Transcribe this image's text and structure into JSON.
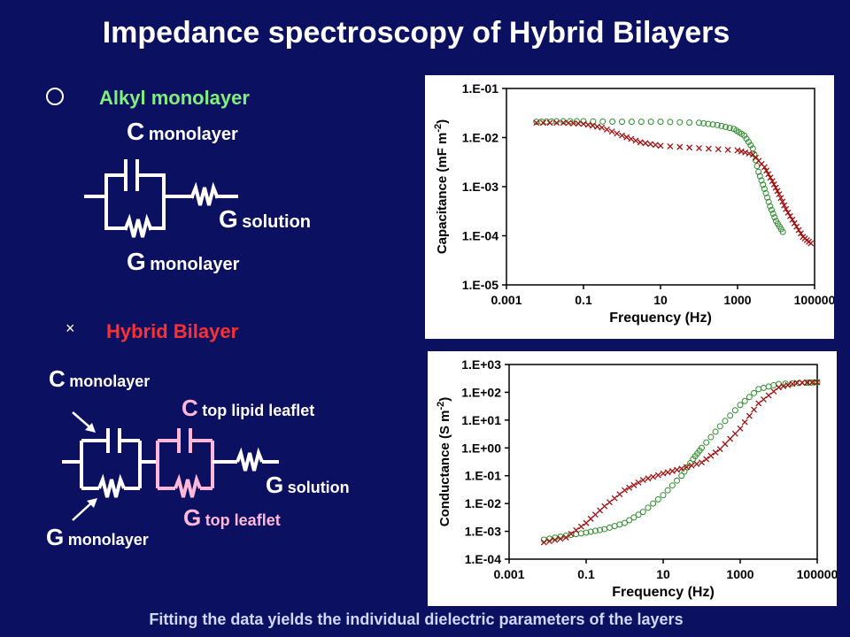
{
  "title": "Impedance spectroscopy of Hybrid Bilayers",
  "legend": {
    "alkyl_symbol": "circle",
    "alkyl_label": "Alkyl monolayer",
    "hybrid_symbol": "×",
    "hybrid_label": "Hybrid Bilayer"
  },
  "circuit1": {
    "c_letter": "C",
    "c_sub": "monolayer",
    "gs_letter": "G",
    "gs_sub": "solution",
    "gm_letter": "G",
    "gm_sub": "monolayer"
  },
  "circuit2": {
    "c_letter": "C",
    "c_sub": "monolayer",
    "ct_letter": "C",
    "ct_sub": "top lipid leaflet",
    "gs_letter": "G",
    "gs_sub": "solution",
    "gt_letter": "G",
    "gt_sub": "top leaflet",
    "gm_letter": "G",
    "gm_sub": "monolayer"
  },
  "footer": "Fitting the data yields the individual dielectric parameters of the layers",
  "colors": {
    "background": "#0c1060",
    "alkyl": "#2e8b2e",
    "hybrid": "#a01010",
    "alkyl_label": "#7ef07e",
    "hybrid_label": "#ff3030",
    "top_leaflet": "#ffb8d8"
  },
  "chart_data": [
    {
      "type": "scatter",
      "x_scale": "log",
      "y_scale": "log",
      "xlabel": "Frequency (Hz)",
      "ylabel_main": "Capacitance (mF m",
      "ylabel_sup": "-2",
      "ylabel_end": ")",
      "xlim": [
        0.001,
        100000
      ],
      "ylim": [
        1e-05,
        0.1
      ],
      "xticks": [
        "0.001",
        "0.1",
        "10",
        "1000",
        "100000"
      ],
      "yticks": [
        "1.E-05",
        "1.E-04",
        "1.E-03",
        "1.E-02",
        "1.E-01"
      ],
      "series": [
        {
          "marker": "circle",
          "color": "#2e8b2e",
          "points": [
            [
              0.006,
              0.021
            ],
            [
              0.02,
              0.0215
            ],
            [
              0.1,
              0.0215
            ],
            [
              1,
              0.021
            ],
            [
              10,
              0.021
            ],
            [
              100,
              0.02
            ],
            [
              300,
              0.018
            ],
            [
              800,
              0.015
            ],
            [
              1500,
              0.011
            ],
            [
              2500,
              0.006
            ],
            [
              3500,
              0.002
            ],
            [
              5000,
              0.0009
            ],
            [
              7000,
              0.0004
            ],
            [
              10000,
              0.0002
            ],
            [
              15000,
              0.00012
            ]
          ]
        },
        {
          "marker": "x",
          "color": "#a01010",
          "points": [
            [
              0.006,
              0.02
            ],
            [
              0.03,
              0.02
            ],
            [
              0.1,
              0.019
            ],
            [
              0.3,
              0.016
            ],
            [
              1,
              0.011
            ],
            [
              3,
              0.008
            ],
            [
              10,
              0.0068
            ],
            [
              100,
              0.0061
            ],
            [
              1000,
              0.0055
            ],
            [
              2500,
              0.0045
            ],
            [
              5000,
              0.0025
            ],
            [
              8000,
              0.0013
            ],
            [
              12000,
              0.0007
            ],
            [
              18000,
              0.00035
            ],
            [
              30000,
              0.00018
            ],
            [
              50000,
              9.5e-05
            ],
            [
              80000,
              7e-05
            ]
          ]
        }
      ]
    },
    {
      "type": "scatter",
      "x_scale": "log",
      "y_scale": "log",
      "xlabel": "Frequency (Hz)",
      "ylabel_main": "Conductance (S m",
      "ylabel_sup": "-2",
      "ylabel_end": ")",
      "xlim": [
        0.001,
        100000
      ],
      "ylim": [
        0.0001,
        1000
      ],
      "xticks": [
        "0.001",
        "0.1",
        "10",
        "1000",
        "100000"
      ],
      "yticks": [
        "1.E-04",
        "1.E-03",
        "1.E-02",
        "1.E-01",
        "1.E+00",
        "1.E+01",
        "1.E+02",
        "1.E+03"
      ],
      "series": [
        {
          "marker": "circle",
          "color": "#2e8b2e",
          "points": [
            [
              0.008,
              0.0005
            ],
            [
              0.03,
              0.0007
            ],
            [
              0.1,
              0.0009
            ],
            [
              0.3,
              0.0012
            ],
            [
              1,
              0.002
            ],
            [
              3,
              0.005
            ],
            [
              10,
              0.02
            ],
            [
              30,
              0.1
            ],
            [
              60,
              0.4
            ],
            [
              100,
              1
            ],
            [
              300,
              6
            ],
            [
              1000,
              35
            ],
            [
              3000,
              130
            ],
            [
              10000,
              200
            ],
            [
              50000,
              220
            ],
            [
              100000,
              230
            ]
          ]
        },
        {
          "marker": "x",
          "color": "#a01010",
          "points": [
            [
              0.008,
              0.0004
            ],
            [
              0.03,
              0.0006
            ],
            [
              0.1,
              0.002
            ],
            [
              0.3,
              0.008
            ],
            [
              1,
              0.03
            ],
            [
              3,
              0.07
            ],
            [
              10,
              0.12
            ],
            [
              30,
              0.18
            ],
            [
              100,
              0.3
            ],
            [
              300,
              0.9
            ],
            [
              1000,
              5
            ],
            [
              3000,
              40
            ],
            [
              10000,
              150
            ],
            [
              30000,
              220
            ],
            [
              100000,
              230
            ]
          ]
        }
      ]
    }
  ]
}
